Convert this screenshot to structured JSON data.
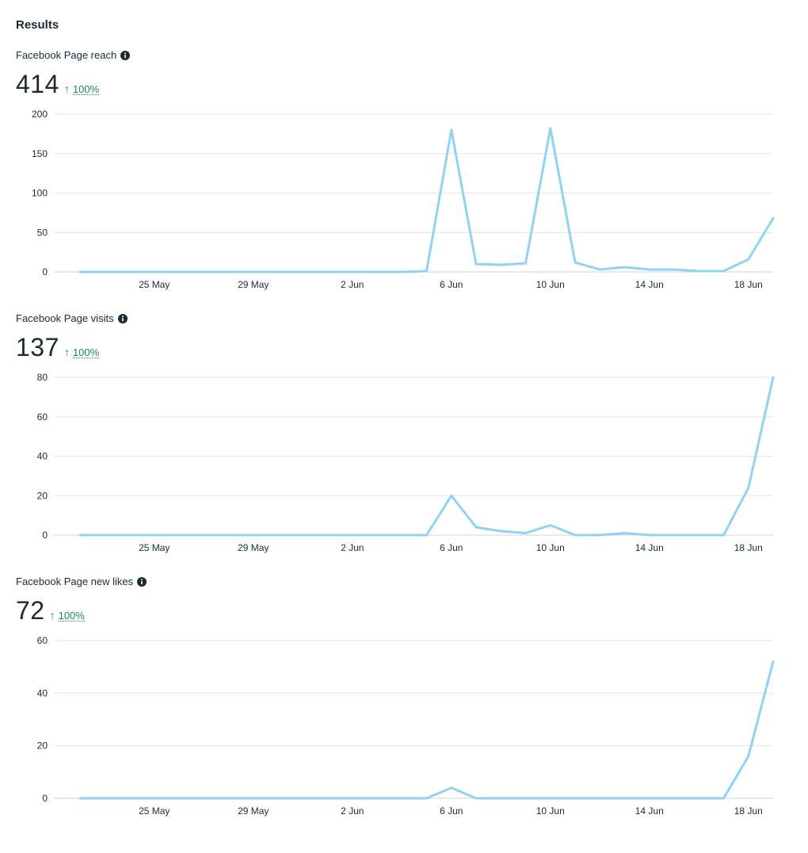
{
  "section_title": "Results",
  "series_color": "#8fd3f4",
  "trend_color": "#168a5a",
  "metrics": [
    {
      "label": "Facebook Page reach",
      "value": "414",
      "trend_pct": "100%",
      "trend_direction": "up",
      "icon": "info-icon"
    },
    {
      "label": "Facebook Page visits",
      "value": "137",
      "trend_pct": "100%",
      "trend_direction": "up",
      "icon": "info-icon"
    },
    {
      "label": "Facebook Page new likes",
      "value": "72",
      "trend_pct": "100%",
      "trend_direction": "up",
      "icon": "info-icon"
    }
  ],
  "chart_data": [
    {
      "type": "line",
      "x": [
        "22 May",
        "23 May",
        "24 May",
        "25 May",
        "26 May",
        "27 May",
        "28 May",
        "29 May",
        "30 May",
        "31 May",
        "1 Jun",
        "2 Jun",
        "3 Jun",
        "4 Jun",
        "5 Jun",
        "6 Jun",
        "7 Jun",
        "8 Jun",
        "9 Jun",
        "10 Jun",
        "11 Jun",
        "12 Jun",
        "13 Jun",
        "14 Jun",
        "15 Jun",
        "16 Jun",
        "17 Jun",
        "18 Jun",
        "19 Jun"
      ],
      "x_tick_labels": [
        "25 May",
        "29 May",
        "2 Jun",
        "6 Jun",
        "10 Jun",
        "14 Jun",
        "18 Jun"
      ],
      "y_ticks": [
        0,
        50,
        100,
        150,
        200
      ],
      "ylim": [
        0,
        200
      ],
      "values": [
        0,
        0,
        0,
        0,
        0,
        0,
        0,
        0,
        0,
        0,
        0,
        0,
        0,
        0,
        1,
        180,
        10,
        9,
        11,
        182,
        12,
        3,
        6,
        3,
        3,
        1,
        1,
        16,
        68
      ],
      "grid": true
    },
    {
      "type": "line",
      "x": [
        "22 May",
        "23 May",
        "24 May",
        "25 May",
        "26 May",
        "27 May",
        "28 May",
        "29 May",
        "30 May",
        "31 May",
        "1 Jun",
        "2 Jun",
        "3 Jun",
        "4 Jun",
        "5 Jun",
        "6 Jun",
        "7 Jun",
        "8 Jun",
        "9 Jun",
        "10 Jun",
        "11 Jun",
        "12 Jun",
        "13 Jun",
        "14 Jun",
        "15 Jun",
        "16 Jun",
        "17 Jun",
        "18 Jun",
        "19 Jun"
      ],
      "x_tick_labels": [
        "25 May",
        "29 May",
        "2 Jun",
        "6 Jun",
        "10 Jun",
        "14 Jun",
        "18 Jun"
      ],
      "y_ticks": [
        0,
        20,
        40,
        60,
        80
      ],
      "ylim": [
        0,
        80
      ],
      "values": [
        0,
        0,
        0,
        0,
        0,
        0,
        0,
        0,
        0,
        0,
        0,
        0,
        0,
        0,
        0,
        20,
        4,
        2,
        1,
        5,
        0,
        0,
        1,
        0,
        0,
        0,
        0,
        24,
        80
      ],
      "grid": true
    },
    {
      "type": "line",
      "x": [
        "22 May",
        "23 May",
        "24 May",
        "25 May",
        "26 May",
        "27 May",
        "28 May",
        "29 May",
        "30 May",
        "31 May",
        "1 Jun",
        "2 Jun",
        "3 Jun",
        "4 Jun",
        "5 Jun",
        "6 Jun",
        "7 Jun",
        "8 Jun",
        "9 Jun",
        "10 Jun",
        "11 Jun",
        "12 Jun",
        "13 Jun",
        "14 Jun",
        "15 Jun",
        "16 Jun",
        "17 Jun",
        "18 Jun",
        "19 Jun"
      ],
      "x_tick_labels": [
        "25 May",
        "29 May",
        "2 Jun",
        "6 Jun",
        "10 Jun",
        "14 Jun",
        "18 Jun"
      ],
      "y_ticks": [
        0,
        20,
        40,
        60
      ],
      "ylim": [
        0,
        60
      ],
      "values": [
        0,
        0,
        0,
        0,
        0,
        0,
        0,
        0,
        0,
        0,
        0,
        0,
        0,
        0,
        0,
        4,
        0,
        0,
        0,
        0,
        0,
        0,
        0,
        0,
        0,
        0,
        0,
        16,
        52
      ],
      "grid": true
    }
  ]
}
